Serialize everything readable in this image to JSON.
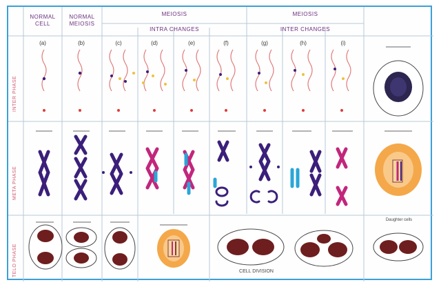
{
  "headers": {
    "col1": "NORMAL CELL",
    "col2": "NORMAL MEIOSIS",
    "group1_line1": "MEIOSIS",
    "group1_line2": "INTRA CHANGES",
    "group2_line1": "MEIOSIS",
    "group2_line2": "INTER CHANGES"
  },
  "row_labels": [
    "INTER PHASE",
    "META PHASE",
    "TELO PHASE"
  ],
  "column_labels": [
    "(a)",
    "(b)",
    "(c)",
    "(d)",
    "(e)",
    "(f)",
    "(g)",
    "(h)",
    "(i)"
  ],
  "footer_label": "CELL DIVISION",
  "note_label": "Daughter cells",
  "colors": {
    "border": "#3aa0d8",
    "chromosome_dark": "#3b1f7a",
    "chromosome_magenta": "#c2267c",
    "chromosome_cyan": "#2aa6d8",
    "nucleus": "#6e1e1e",
    "orange_cell": "#f4a84a",
    "thread": "#e07a7a"
  }
}
